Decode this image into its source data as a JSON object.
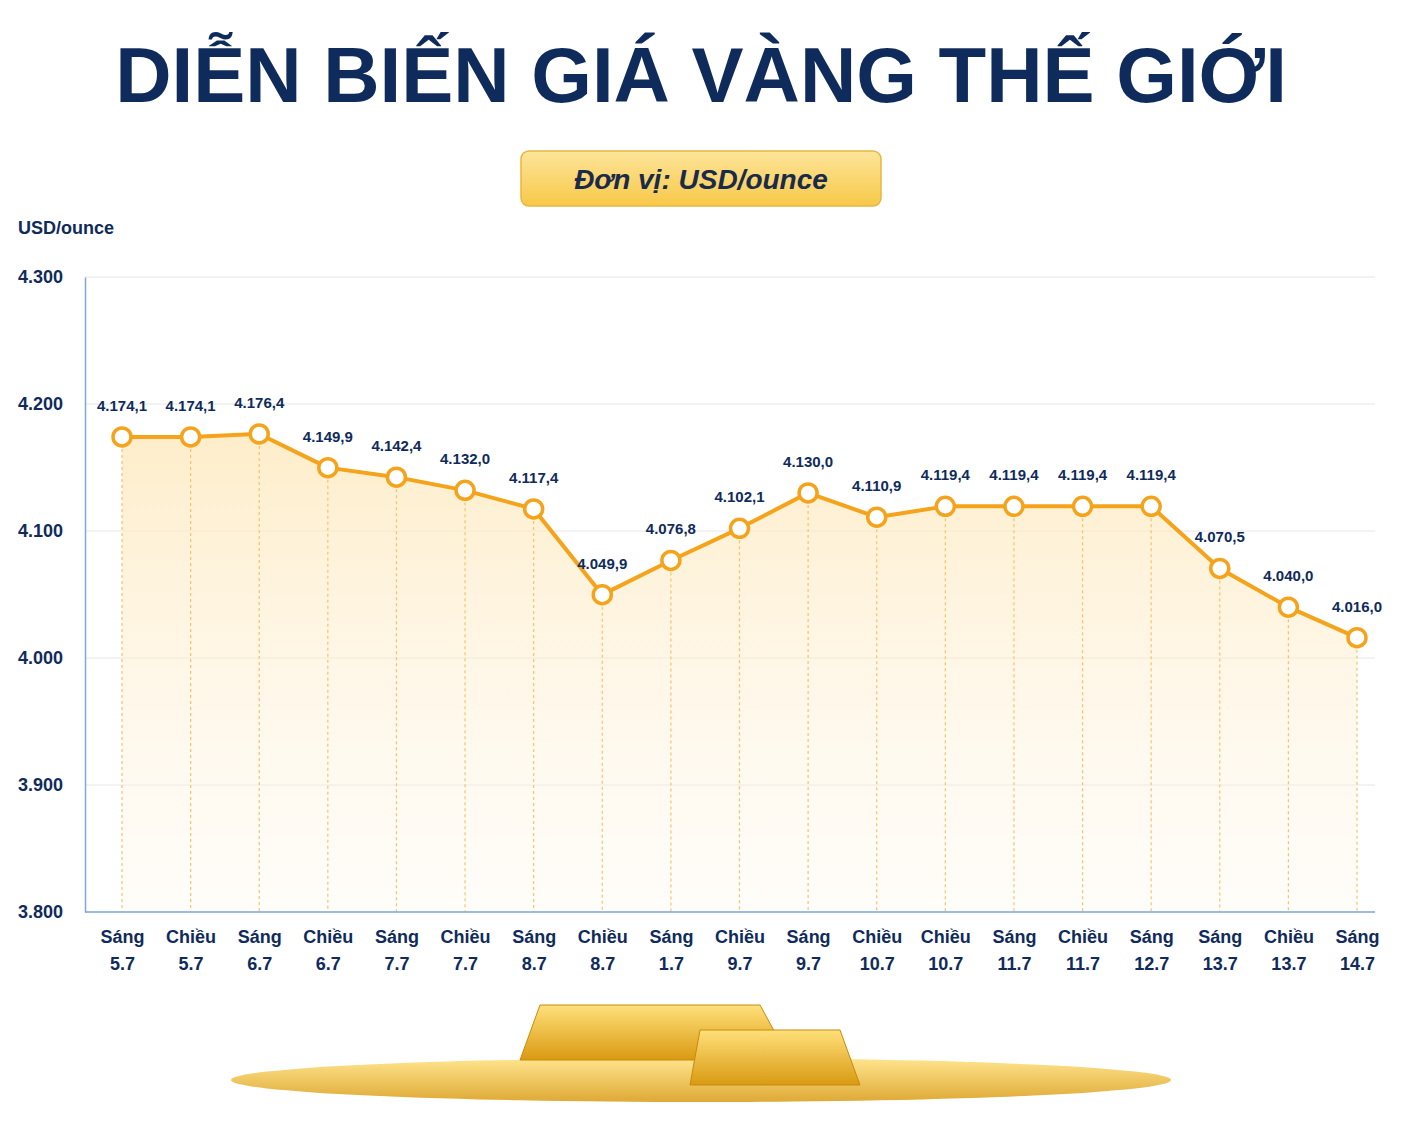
{
  "chart_data": {
    "type": "line",
    "title": "DIỄN BIẾN GIÁ VÀNG THẾ GIỚI",
    "subtitle": "Đơn vị: USD/ounce",
    "ylabel": "USD/ounce",
    "categories": [
      "Sáng 5.7",
      "Chiều 5.7",
      "Sáng 6.7",
      "Chiều 6.7",
      "Sáng 7.7",
      "Chiều 7.7",
      "Sáng 8.7",
      "Chiều 8.7",
      "Sáng 1.7",
      "Chiều 9.7",
      "Sáng 9.7",
      "Chiều 10.7",
      "Chiều 10.7",
      "Sáng 11.7",
      "Chiều 11.7",
      "Sáng 12.7",
      "Sáng 13.7",
      "Chiều 13.7",
      "Sáng 14.7"
    ],
    "values": [
      4174.1,
      4174.1,
      4176.4,
      4149.9,
      4142.4,
      4132.0,
      4117.4,
      4049.9,
      4076.8,
      4102.1,
      4130.0,
      4110.9,
      4119.4,
      4119.4,
      4119.4,
      4119.4,
      4070.5,
      4040.0,
      4016.0
    ],
    "value_labels": [
      "4.174,1",
      "4.174,1",
      "4.176,4",
      "4.149,9",
      "4.142,4",
      "4.132,0",
      "4.117,4",
      "4.049,9",
      "4.076,8",
      "4.102,1",
      "4.130,0",
      "4.110,9",
      "4.119,4",
      "4.119,4",
      "4.119,4",
      "4.119,4",
      "4.070,5",
      "4.040,0",
      "4.016,0"
    ],
    "color": "#f5a31a",
    "marker": "circle",
    "ylim": [
      3800,
      4300
    ],
    "yticks": [
      {
        "value": 3800,
        "label": "3.800"
      },
      {
        "value": 3900,
        "label": "3.900"
      },
      {
        "value": 4000,
        "label": "4.000"
      },
      {
        "value": 4100,
        "label": "4.100"
      },
      {
        "value": 4200,
        "label": "4.200"
      },
      {
        "value": 4300,
        "label": "4.300"
      }
    ],
    "grid": true,
    "data_labels": true
  }
}
